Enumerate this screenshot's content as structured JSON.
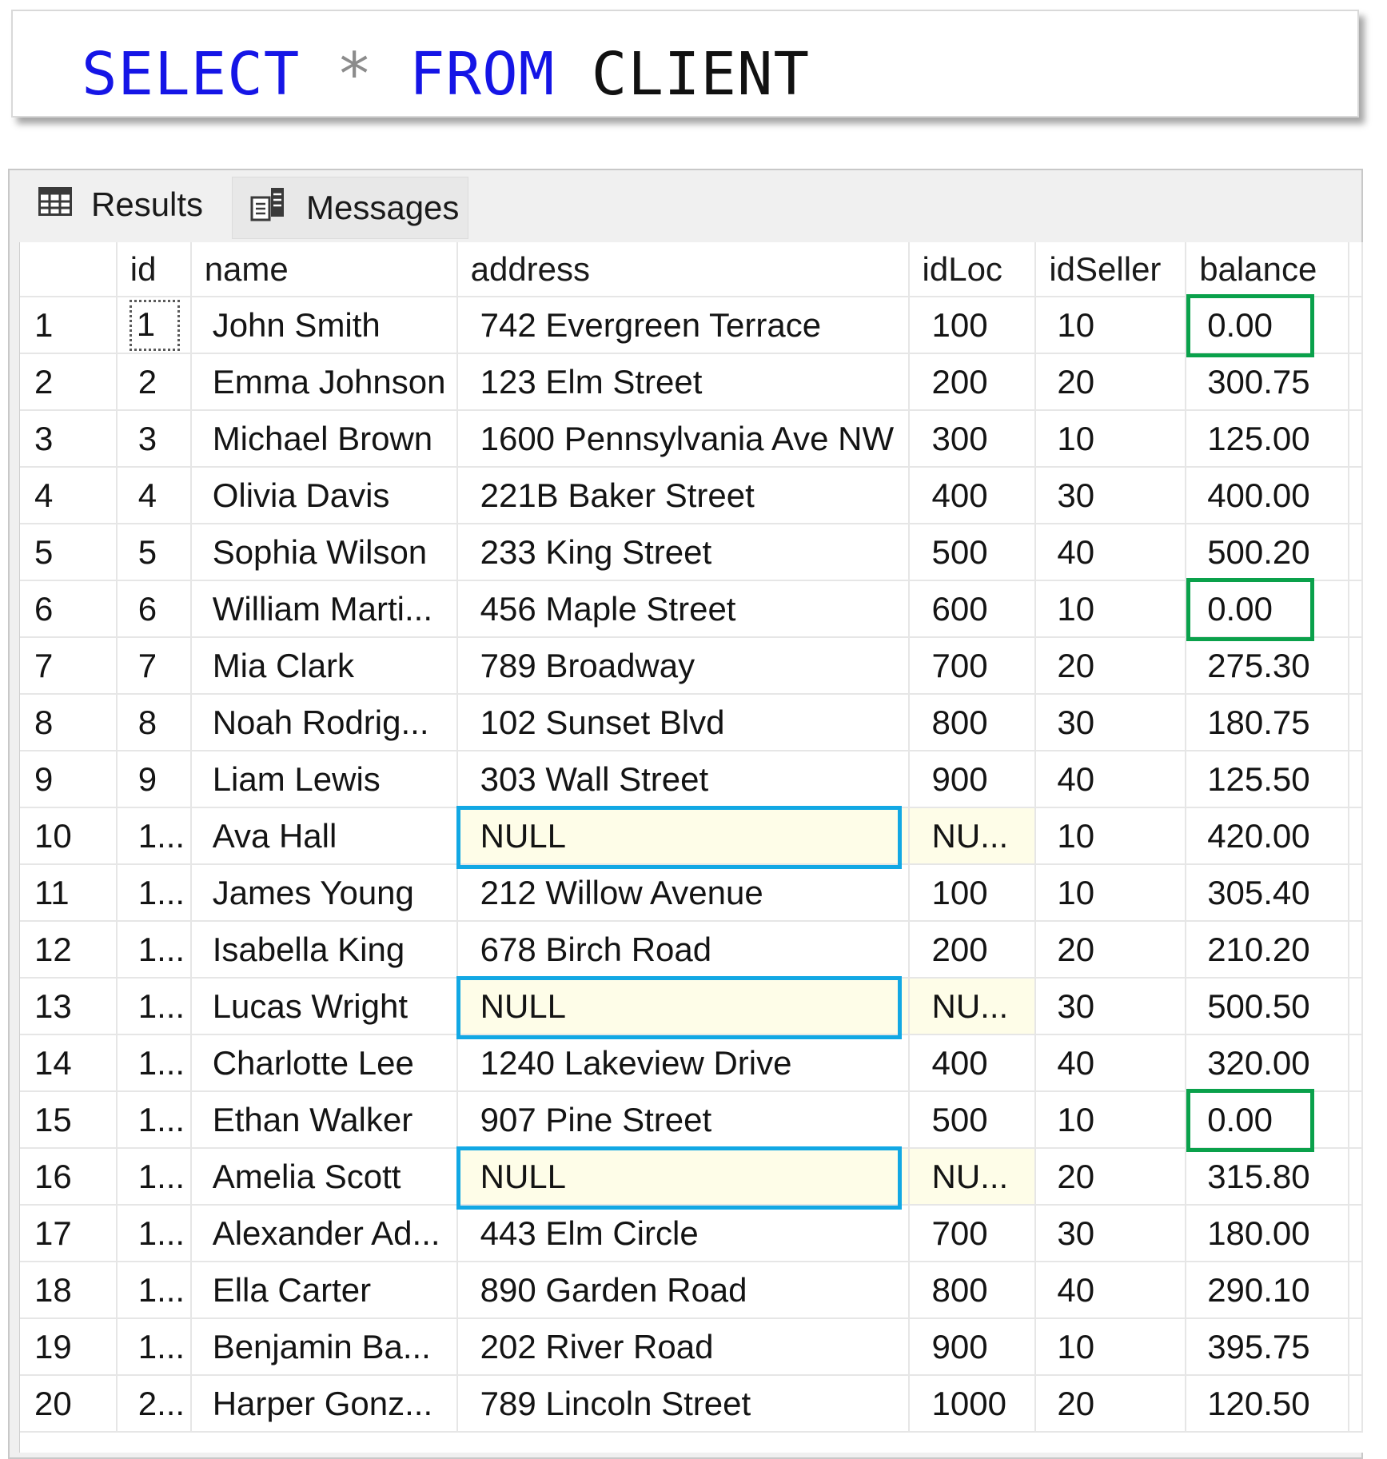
{
  "query": {
    "select": "SELECT",
    "star": "*",
    "from": "FROM",
    "table": "CLIENT"
  },
  "tabs": {
    "results": "Results",
    "messages": "Messages",
    "results_icon": "grid-icon",
    "messages_icon": "messages-icon"
  },
  "grid": {
    "columns": [
      "",
      "id",
      "name",
      "address",
      "idLoc",
      "idSeller",
      "balance"
    ],
    "rows": [
      {
        "row": "1",
        "id": "1",
        "name": "John Smith",
        "address": "742 Evergreen Terrace",
        "idLoc": "100",
        "idSeller": "10",
        "balance": "0.00"
      },
      {
        "row": "2",
        "id": "2",
        "name": "Emma Johnson",
        "address": "123 Elm Street",
        "idLoc": "200",
        "idSeller": "20",
        "balance": "300.75"
      },
      {
        "row": "3",
        "id": "3",
        "name": "Michael Brown",
        "address": "1600 Pennsylvania Ave NW",
        "idLoc": "300",
        "idSeller": "10",
        "balance": "125.00"
      },
      {
        "row": "4",
        "id": "4",
        "name": "Olivia Davis",
        "address": "221B Baker Street",
        "idLoc": "400",
        "idSeller": "30",
        "balance": "400.00"
      },
      {
        "row": "5",
        "id": "5",
        "name": "Sophia Wilson",
        "address": "233 King Street",
        "idLoc": "500",
        "idSeller": "40",
        "balance": "500.20"
      },
      {
        "row": "6",
        "id": "6",
        "name": "William Marti...",
        "address": "456 Maple Street",
        "idLoc": "600",
        "idSeller": "10",
        "balance": "0.00"
      },
      {
        "row": "7",
        "id": "7",
        "name": "Mia Clark",
        "address": "789 Broadway",
        "idLoc": "700",
        "idSeller": "20",
        "balance": "275.30"
      },
      {
        "row": "8",
        "id": "8",
        "name": "Noah Rodrig...",
        "address": "102 Sunset Blvd",
        "idLoc": "800",
        "idSeller": "30",
        "balance": "180.75"
      },
      {
        "row": "9",
        "id": "9",
        "name": "Liam Lewis",
        "address": "303 Wall Street",
        "idLoc": "900",
        "idSeller": "40",
        "balance": "125.50"
      },
      {
        "row": "10",
        "id": "1...",
        "name": "Ava Hall",
        "address": "NULL",
        "idLoc": "NU...",
        "idSeller": "10",
        "balance": "420.00"
      },
      {
        "row": "11",
        "id": "1...",
        "name": "James Young",
        "address": "212 Willow Avenue",
        "idLoc": "100",
        "idSeller": "10",
        "balance": "305.40"
      },
      {
        "row": "12",
        "id": "1...",
        "name": "Isabella King",
        "address": "678 Birch Road",
        "idLoc": "200",
        "idSeller": "20",
        "balance": "210.20"
      },
      {
        "row": "13",
        "id": "1...",
        "name": "Lucas Wright",
        "address": "NULL",
        "idLoc": "NU...",
        "idSeller": "30",
        "balance": "500.50"
      },
      {
        "row": "14",
        "id": "1...",
        "name": "Charlotte Lee",
        "address": "1240 Lakeview Drive",
        "idLoc": "400",
        "idSeller": "40",
        "balance": "320.00"
      },
      {
        "row": "15",
        "id": "1...",
        "name": "Ethan Walker",
        "address": "907 Pine Street",
        "idLoc": "500",
        "idSeller": "10",
        "balance": "0.00"
      },
      {
        "row": "16",
        "id": "1...",
        "name": "Amelia Scott",
        "address": "NULL",
        "idLoc": "NU...",
        "idSeller": "20",
        "balance": "315.80"
      },
      {
        "row": "17",
        "id": "1...",
        "name": "Alexander Ad...",
        "address": "443 Elm Circle",
        "idLoc": "700",
        "idSeller": "30",
        "balance": "180.00"
      },
      {
        "row": "18",
        "id": "1...",
        "name": "Ella Carter",
        "address": "890 Garden Road",
        "idLoc": "800",
        "idSeller": "40",
        "balance": "290.10"
      },
      {
        "row": "19",
        "id": "1...",
        "name": "Benjamin Ba...",
        "address": "202 River Road",
        "idLoc": "900",
        "idSeller": "10",
        "balance": "395.75"
      },
      {
        "row": "20",
        "id": "2...",
        "name": "Harper Gonz...",
        "address": "789 Lincoln Street",
        "idLoc": "1000",
        "idSeller": "20",
        "balance": "120.50"
      }
    ]
  },
  "colors": {
    "keyword": "#1515e6",
    "zero_balance_highlight": "#0aa14b",
    "null_address_highlight": "#12a8e4",
    "null_cell_background": "#fefde8"
  }
}
